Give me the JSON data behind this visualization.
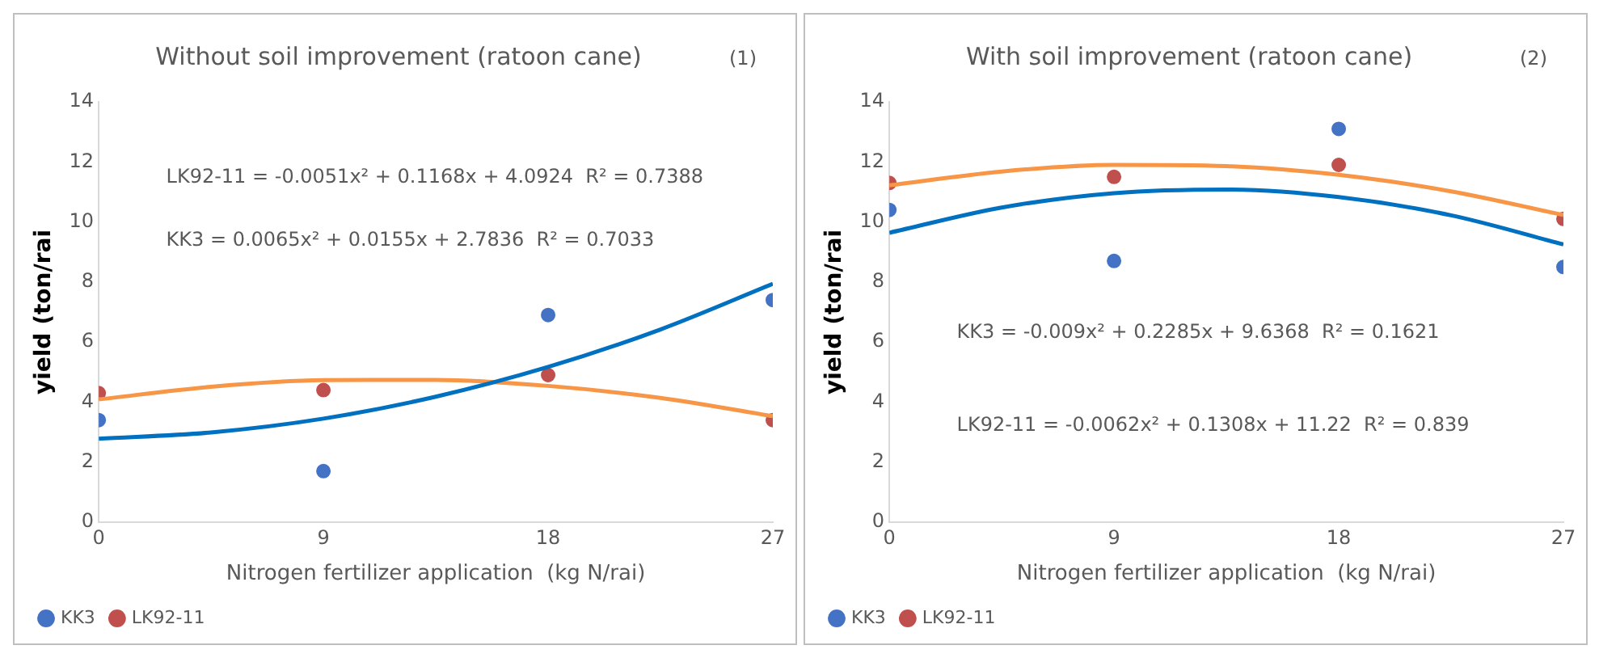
{
  "chart_data": [
    {
      "type": "scatter",
      "title": "Without soil improvement (ratoon cane)",
      "xlabel": "Nitrogen fertilizer application  (kg N/rai)",
      "ylabel": "yield (ton/rai",
      "xlim": [
        0,
        27
      ],
      "ylim": [
        0,
        14
      ],
      "xticks": [
        0,
        9,
        18,
        27
      ],
      "yticks": [
        0,
        2,
        4,
        6,
        8,
        10,
        12,
        14
      ],
      "grid": false,
      "legend": "bottom left",
      "marker": "circle",
      "annotations": [
        "(1)",
        "LK92-11 = -0.0051x² + 0.1168x + 4.0924  R² = 0.7388",
        "KK3 = 0.0065x² + 0.0155x + 2.7836  R² = 0.7033"
      ],
      "series": [
        {
          "type": "line",
          "color": "#0070c0",
          "marker": "none",
          "x": [
            0,
            4.5,
            9,
            13.5,
            18,
            22.5,
            27
          ],
          "values": [
            2.78,
            2.99,
            3.45,
            4.18,
            5.17,
            6.42,
            7.94
          ]
        },
        {
          "type": "line",
          "color": "#f79646",
          "marker": "none",
          "x": [
            0,
            4.5,
            9,
            13.5,
            18,
            22.5,
            27
          ],
          "values": [
            4.09,
            4.51,
            4.73,
            4.74,
            4.54,
            4.14,
            3.53
          ]
        },
        {
          "type": "scatter",
          "name": "KK3",
          "color": "#4472c4",
          "x": [
            0,
            9,
            18,
            27
          ],
          "values": [
            3.4,
            1.7,
            6.9,
            7.4
          ]
        },
        {
          "type": "scatter",
          "name": "LK92-11",
          "color": "#c0504d",
          "x": [
            0,
            9,
            18,
            27
          ],
          "values": [
            4.3,
            4.4,
            4.9,
            3.4
          ]
        }
      ]
    },
    {
      "type": "scatter",
      "title": "With soil improvement (ratoon cane)",
      "xlabel": "Nitrogen fertilizer application  (kg N/rai)",
      "ylabel": "yield (ton/rai",
      "xlim": [
        0,
        27
      ],
      "ylim": [
        0,
        14
      ],
      "xticks": [
        0,
        9,
        18,
        27
      ],
      "yticks": [
        0,
        2,
        4,
        6,
        8,
        10,
        12,
        14
      ],
      "grid": false,
      "legend": "bottom left",
      "marker": "circle",
      "annotations": [
        "(2)",
        "KK3 = -0.009x² + 0.2285x + 9.6368  R² = 0.1621",
        "LK92-11 = -0.0062x² + 0.1308x + 11.22  R² = 0.839"
      ],
      "series": [
        {
          "type": "line",
          "color": "#0070c0",
          "marker": "none",
          "x": [
            0,
            4.5,
            9,
            13.5,
            18,
            22.5,
            27
          ],
          "values": [
            9.64,
            10.48,
            10.96,
            11.08,
            10.83,
            10.22,
            9.25
          ]
        },
        {
          "type": "line",
          "color": "#f79646",
          "marker": "none",
          "x": [
            0,
            4.5,
            9,
            13.5,
            18,
            22.5,
            27
          ],
          "values": [
            11.22,
            11.68,
            11.9,
            11.86,
            11.57,
            11.02,
            10.23
          ]
        },
        {
          "type": "scatter",
          "name": "KK3",
          "color": "#4472c4",
          "x": [
            0,
            9,
            18,
            27
          ],
          "values": [
            10.4,
            8.7,
            13.1,
            8.5
          ]
        },
        {
          "type": "scatter",
          "name": "LK92-11",
          "color": "#c0504d",
          "x": [
            0,
            9,
            18,
            27
          ],
          "values": [
            11.3,
            11.5,
            11.9,
            10.1
          ]
        }
      ]
    }
  ]
}
